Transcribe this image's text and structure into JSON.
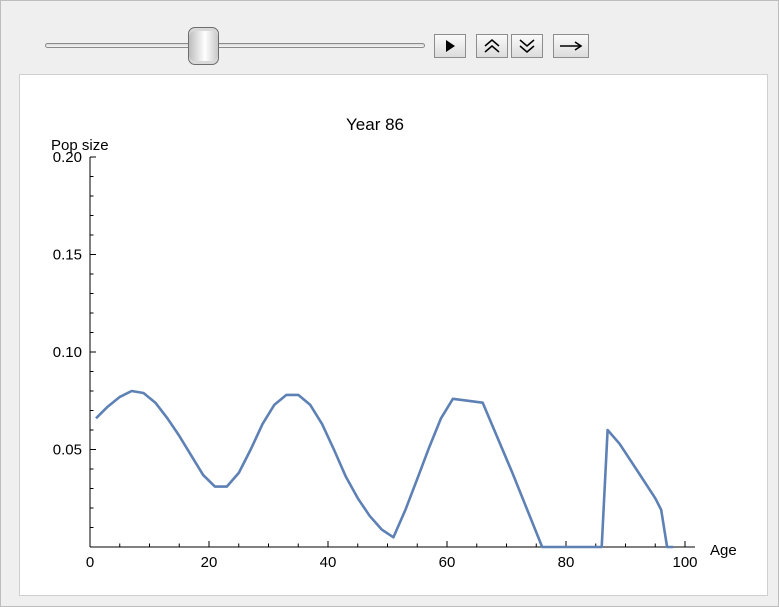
{
  "controls": {
    "slider_value": 0.41,
    "buttons": [
      {
        "name": "play-button",
        "icon": "play-icon"
      },
      {
        "name": "faster-button",
        "icon": "double-chevron-up-icon"
      },
      {
        "name": "slower-button",
        "icon": "double-chevron-down-icon"
      },
      {
        "name": "direction-button",
        "icon": "arrow-right-icon"
      }
    ]
  },
  "chart_data": {
    "type": "line",
    "title": "Year 86",
    "xlabel": "Age",
    "ylabel": "Pop size",
    "xlim": [
      0,
      100
    ],
    "ylim": [
      0,
      0.2
    ],
    "xticks": [
      0,
      20,
      40,
      60,
      80,
      100
    ],
    "xtick_labels": [
      "0",
      "20",
      "40",
      "60",
      "80",
      "100"
    ],
    "yticks": [
      0.05,
      0.1,
      0.15,
      0.2
    ],
    "ytick_labels": [
      "0.05",
      "0.10",
      "0.15",
      "0.20"
    ],
    "line_color": "#5e81b5",
    "series": [
      {
        "x": [
          1,
          3,
          5,
          7,
          9,
          11,
          13,
          15,
          17,
          19,
          21,
          23,
          25,
          27,
          29,
          31,
          33,
          35,
          37,
          39,
          41,
          43,
          45,
          47,
          49,
          51,
          53,
          55,
          57,
          59,
          61,
          66,
          71,
          76,
          86,
          87,
          89,
          92,
          95,
          96,
          97,
          98
        ],
        "y": [
          0.066,
          0.072,
          0.077,
          0.08,
          0.079,
          0.074,
          0.066,
          0.057,
          0.047,
          0.037,
          0.031,
          0.031,
          0.038,
          0.05,
          0.063,
          0.073,
          0.078,
          0.078,
          0.073,
          0.063,
          0.05,
          0.036,
          0.025,
          0.016,
          0.009,
          0.005,
          0.019,
          0.035,
          0.051,
          0.066,
          0.076,
          0.074,
          0.038,
          0.0,
          0.0,
          0.06,
          0.053,
          0.039,
          0.025,
          0.019,
          0.0,
          0.0
        ]
      }
    ]
  }
}
